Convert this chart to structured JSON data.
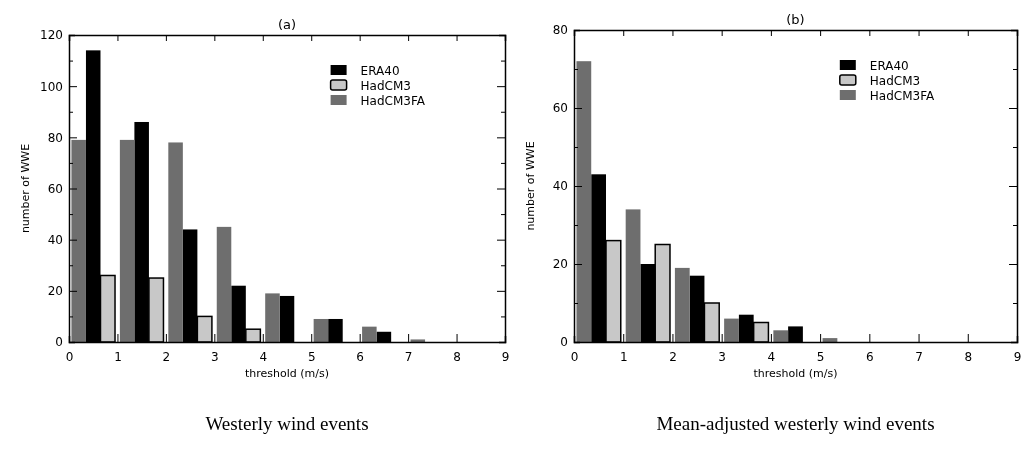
{
  "chart_data": [
    {
      "type": "bar",
      "title": "(a)",
      "xlabel": "threshold (m/s)",
      "ylabel": "number of WWE",
      "annotations": [
        "Westerly wind events"
      ],
      "legend": "top right",
      "xlim": [
        0,
        9
      ],
      "xticks": [
        0,
        1,
        2,
        3,
        4,
        5,
        6,
        7,
        8,
        9
      ],
      "ylim": [
        0,
        120
      ],
      "yticks": [
        0,
        {
          "value": 10,
          "label": null
        },
        20,
        {
          "value": 30,
          "label": null
        },
        40,
        {
          "value": 50,
          "label": null
        },
        60,
        {
          "value": 70,
          "label": null
        },
        80,
        {
          "value": 90,
          "label": null
        },
        100,
        {
          "value": 110,
          "label": null
        },
        120
      ],
      "series": [
        {
          "name": "ERA40",
          "color": "#000000",
          "x": [
            0.5,
            1.5,
            2.5,
            3.5,
            4.5,
            5.5,
            6.5,
            7.5,
            8.5
          ],
          "values": [
            114,
            86,
            44,
            22,
            18,
            9,
            4,
            0,
            0
          ]
        },
        {
          "name": "HadCM3",
          "color": "#c8c8c8",
          "x": [
            0.8,
            1.8,
            2.8,
            3.8,
            4.8,
            5.8,
            6.8,
            7.8,
            8.8
          ],
          "values": [
            26,
            25,
            10,
            5,
            0,
            0,
            0,
            0,
            0
          ]
        },
        {
          "name": "HadCM3FA",
          "color": "#6e6e6e",
          "x": [
            0.2,
            1.2,
            2.2,
            3.2,
            4.2,
            5.2,
            6.2,
            7.2,
            8.2
          ],
          "values": [
            79,
            79,
            78,
            45,
            19,
            9,
            6,
            1,
            0
          ]
        }
      ]
    },
    {
      "type": "bar",
      "title": "(b)",
      "xlabel": "threshold (m/s)",
      "ylabel": "number of WWE",
      "annotations": [
        "Mean-adjusted westerly wind events"
      ],
      "legend": "top right",
      "xlim": [
        0,
        9
      ],
      "xticks": [
        0,
        1,
        2,
        3,
        4,
        5,
        6,
        7,
        8,
        9
      ],
      "ylim": [
        0,
        80
      ],
      "yticks": [
        0,
        {
          "value": 10,
          "label": null
        },
        20,
        {
          "value": 30,
          "label": null
        },
        40,
        {
          "value": 50,
          "label": null
        },
        60,
        {
          "value": 70,
          "label": null
        },
        80
      ],
      "series": [
        {
          "name": "ERA40",
          "color": "#000000",
          "x": [
            0.5,
            1.5,
            2.5,
            3.5,
            4.5,
            5.5,
            6.5,
            7.5,
            8.5
          ],
          "values": [
            43,
            20,
            17,
            7,
            4,
            0,
            0,
            0,
            0
          ]
        },
        {
          "name": "HadCM3",
          "color": "#c8c8c8",
          "x": [
            0.8,
            1.8,
            2.8,
            3.8,
            4.8,
            5.8,
            6.8,
            7.8,
            8.8
          ],
          "values": [
            26,
            25,
            10,
            5,
            0,
            0,
            0,
            0,
            0
          ]
        },
        {
          "name": "HadCM3FA",
          "color": "#6e6e6e",
          "x": [
            0.2,
            1.2,
            2.2,
            3.2,
            4.2,
            5.2,
            6.2,
            7.2,
            8.2
          ],
          "values": [
            72,
            34,
            19,
            6,
            3,
            1,
            0,
            0,
            0
          ]
        }
      ]
    }
  ]
}
